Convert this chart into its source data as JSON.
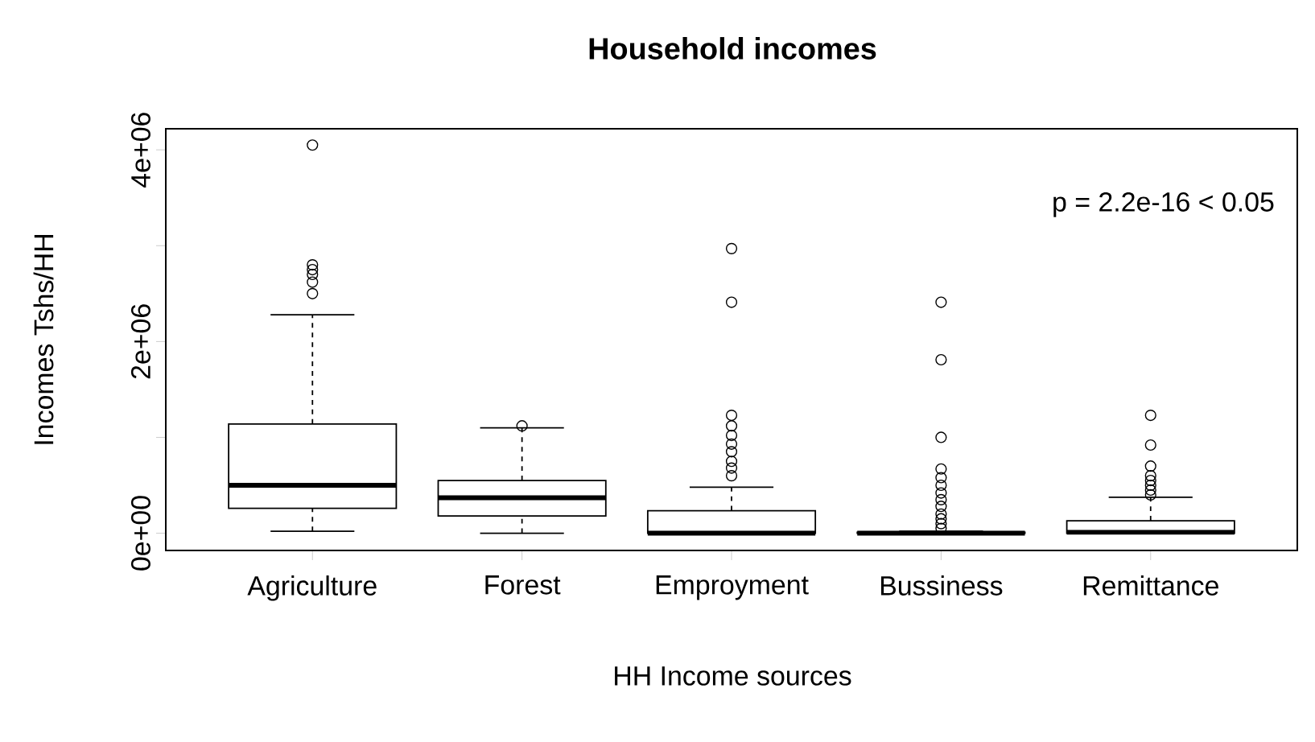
{
  "chart_data": {
    "type": "box",
    "title": "Household incomes",
    "xlabel": "HH Income sources",
    "ylabel": "Incomes Tshs/HH",
    "categories": [
      "Agriculture",
      "Forest",
      "Emproyment",
      "Bussiness",
      "Remittance"
    ],
    "boxes": [
      {
        "low": 20000,
        "q1": 260000,
        "median": 500000,
        "q3": 1140000,
        "high": 2280000,
        "outliers": [
          2500000,
          2620000,
          2700000,
          2750000,
          2800000,
          4050000
        ]
      },
      {
        "low": 0,
        "q1": 180000,
        "median": 370000,
        "q3": 550000,
        "high": 1100000,
        "outliers": [
          1120000
        ]
      },
      {
        "low": 0,
        "q1": 0,
        "median": 0,
        "q3": 235000,
        "high": 480000,
        "outliers": [
          600000,
          680000,
          750000,
          850000,
          930000,
          1020000,
          1120000,
          1230000,
          2410000,
          2970000
        ]
      },
      {
        "low": 0,
        "q1": 0,
        "median": 0,
        "q3": 10000,
        "high": 20000,
        "outliers": [
          50000,
          100000,
          150000,
          200000,
          280000,
          350000,
          420000,
          500000,
          580000,
          670000,
          1000000,
          1810000,
          2410000
        ]
      },
      {
        "low": 0,
        "q1": 0,
        "median": 10000,
        "q3": 130000,
        "high": 375000,
        "outliers": [
          400000,
          450000,
          500000,
          550000,
          600000,
          700000,
          920000,
          1230000
        ]
      }
    ],
    "ylim": [
      -180000,
      4220000
    ],
    "yticks": [
      {
        "value": 0,
        "label": "0e+00"
      },
      {
        "value": 1000000,
        "label": null
      },
      {
        "value": 2000000,
        "label": "2e+06"
      },
      {
        "value": 3000000,
        "label": null
      },
      {
        "value": 4000000,
        "label": "4e+06"
      }
    ],
    "grid": false,
    "annotations": [
      "p = 2.2e-16 < 0.05"
    ]
  }
}
